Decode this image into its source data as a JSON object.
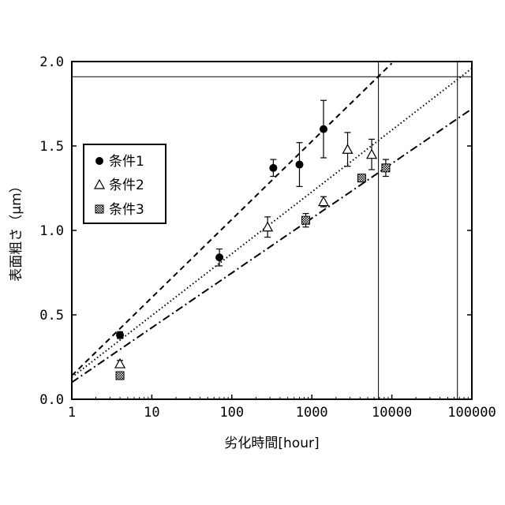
{
  "chart_data": {
    "type": "scatter",
    "xlabel": "劣化時間[hour]",
    "ylabel": "表面粗さ（μm）",
    "xscale": "log",
    "xlim": [
      1,
      100000
    ],
    "ylim": [
      0.0,
      2.0
    ],
    "x_ticks": [
      1,
      10,
      100,
      1000,
      10000,
      100000
    ],
    "x_tick_labels": [
      "1",
      "10",
      "100",
      "1000",
      "10000",
      "100000"
    ],
    "y_ticks": [
      0.0,
      0.5,
      1.0,
      1.5,
      2.0
    ],
    "y_tick_labels": [
      "0.0",
      "0.5",
      "1.0",
      "1.5",
      "2.0"
    ],
    "grid": false,
    "legend_position": "left",
    "series": [
      {
        "name": "条件1",
        "marker": "filled-circle",
        "points": [
          {
            "x": 4,
            "y": 0.38,
            "err": 0.02
          },
          {
            "x": 70,
            "y": 0.84,
            "err": 0.05
          },
          {
            "x": 330,
            "y": 1.37,
            "err": 0.05
          },
          {
            "x": 700,
            "y": 1.39,
            "err": 0.13
          },
          {
            "x": 1400,
            "y": 1.6,
            "err": 0.17
          }
        ]
      },
      {
        "name": "条件2",
        "marker": "open-triangle",
        "points": [
          {
            "x": 4,
            "y": 0.21,
            "err": 0.02
          },
          {
            "x": 280,
            "y": 1.02,
            "err": 0.06
          },
          {
            "x": 1400,
            "y": 1.17,
            "err": 0.03
          },
          {
            "x": 2800,
            "y": 1.48,
            "err": 0.1
          },
          {
            "x": 5600,
            "y": 1.45,
            "err": 0.09
          }
        ]
      },
      {
        "name": "条件3",
        "marker": "hatched-square",
        "points": [
          {
            "x": 4,
            "y": 0.14,
            "err": 0.02
          },
          {
            "x": 840,
            "y": 1.06,
            "err": 0.04
          },
          {
            "x": 4200,
            "y": 1.31,
            "err": 0.02
          },
          {
            "x": 8400,
            "y": 1.37,
            "err": 0.05
          }
        ]
      }
    ],
    "trend_lines": [
      {
        "series": "条件1",
        "style": "dashed",
        "x1": 1,
        "y1": 0.14,
        "x2": 10000,
        "y2": 1.99
      },
      {
        "series": "条件2",
        "style": "dotted",
        "x1": 1,
        "y1": 0.13,
        "x2": 100000,
        "y2": 1.96
      },
      {
        "series": "条件3",
        "style": "dash-dot",
        "x1": 1,
        "y1": 0.1,
        "x2": 100000,
        "y2": 1.72
      }
    ],
    "reference_lines": {
      "horizontal_y": 1.91,
      "vertical_x": [
        6800,
        66000
      ]
    }
  },
  "legend": {
    "items": [
      "条件1",
      "条件2",
      "条件3"
    ]
  }
}
